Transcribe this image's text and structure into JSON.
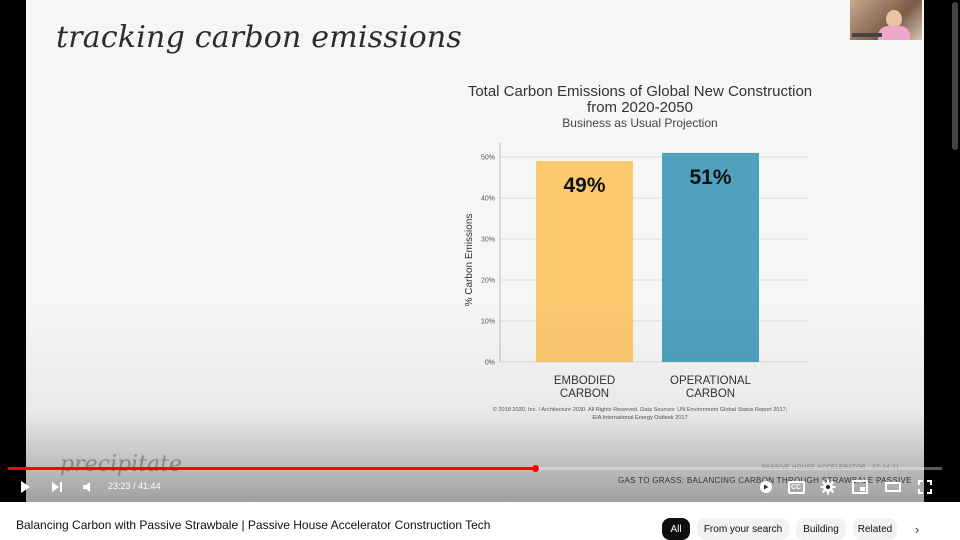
{
  "slide": {
    "title": "tracking carbon emissions",
    "brand": "precipitate",
    "footer_line1": "PASSIVE HOUSE ACCELERATOR · 07-14-21",
    "footer_line2": "GAS TO GRASS: BALANCING CARBON THROUGH STRAWBALE PASSIVE"
  },
  "chart_data": {
    "type": "bar",
    "title": "Total Carbon Emissions of Global New Construction",
    "title_line2": "from 2020-2050",
    "subtitle": "Business as Usual Projection",
    "ylabel": "% Carbon Emissions",
    "xlabel": "",
    "ylim": [
      0,
      50
    ],
    "yticks": [
      0,
      10,
      20,
      30,
      40,
      50
    ],
    "ytick_labels": [
      "0%",
      "10%",
      "20%",
      "30%",
      "40%",
      "50%"
    ],
    "categories": [
      {
        "line1": "EMBODIED",
        "line2": "CARBON"
      },
      {
        "line1": "OPERATIONAL",
        "line2": "CARBON"
      }
    ],
    "values": [
      49,
      51
    ],
    "value_labels": [
      "49%",
      "51%"
    ],
    "colors": [
      "#fbc96e",
      "#4fa1bd"
    ],
    "grid": true,
    "source_line1": "© 2018 2030, Inc. / Architecture 2030. All Rights Reserved. Data Sources: UN Environment Global Status Report 2017;",
    "source_line2": "EIA International Energy Outlook 2017"
  },
  "player": {
    "time_current": "23:23",
    "time_separator": " / ",
    "time_total": "41:44",
    "progress": 0.564,
    "buffered": 0.57,
    "icons": {
      "play": "play-icon",
      "next": "next-icon",
      "volume": "volume-icon",
      "autoplay": "autoplay-toggle-icon",
      "cc": "closed-captions-icon",
      "settings": "gear-icon",
      "miniplayer": "miniplayer-icon",
      "theater": "theater-mode-icon",
      "fullscreen": "fullscreen-icon"
    },
    "cc_label": "CC"
  },
  "page": {
    "video_title": "Balancing Carbon with Passive Strawbale | Passive House Accelerator Construction Tech",
    "chips": [
      "All",
      "From your search",
      "Building",
      "Related"
    ]
  }
}
